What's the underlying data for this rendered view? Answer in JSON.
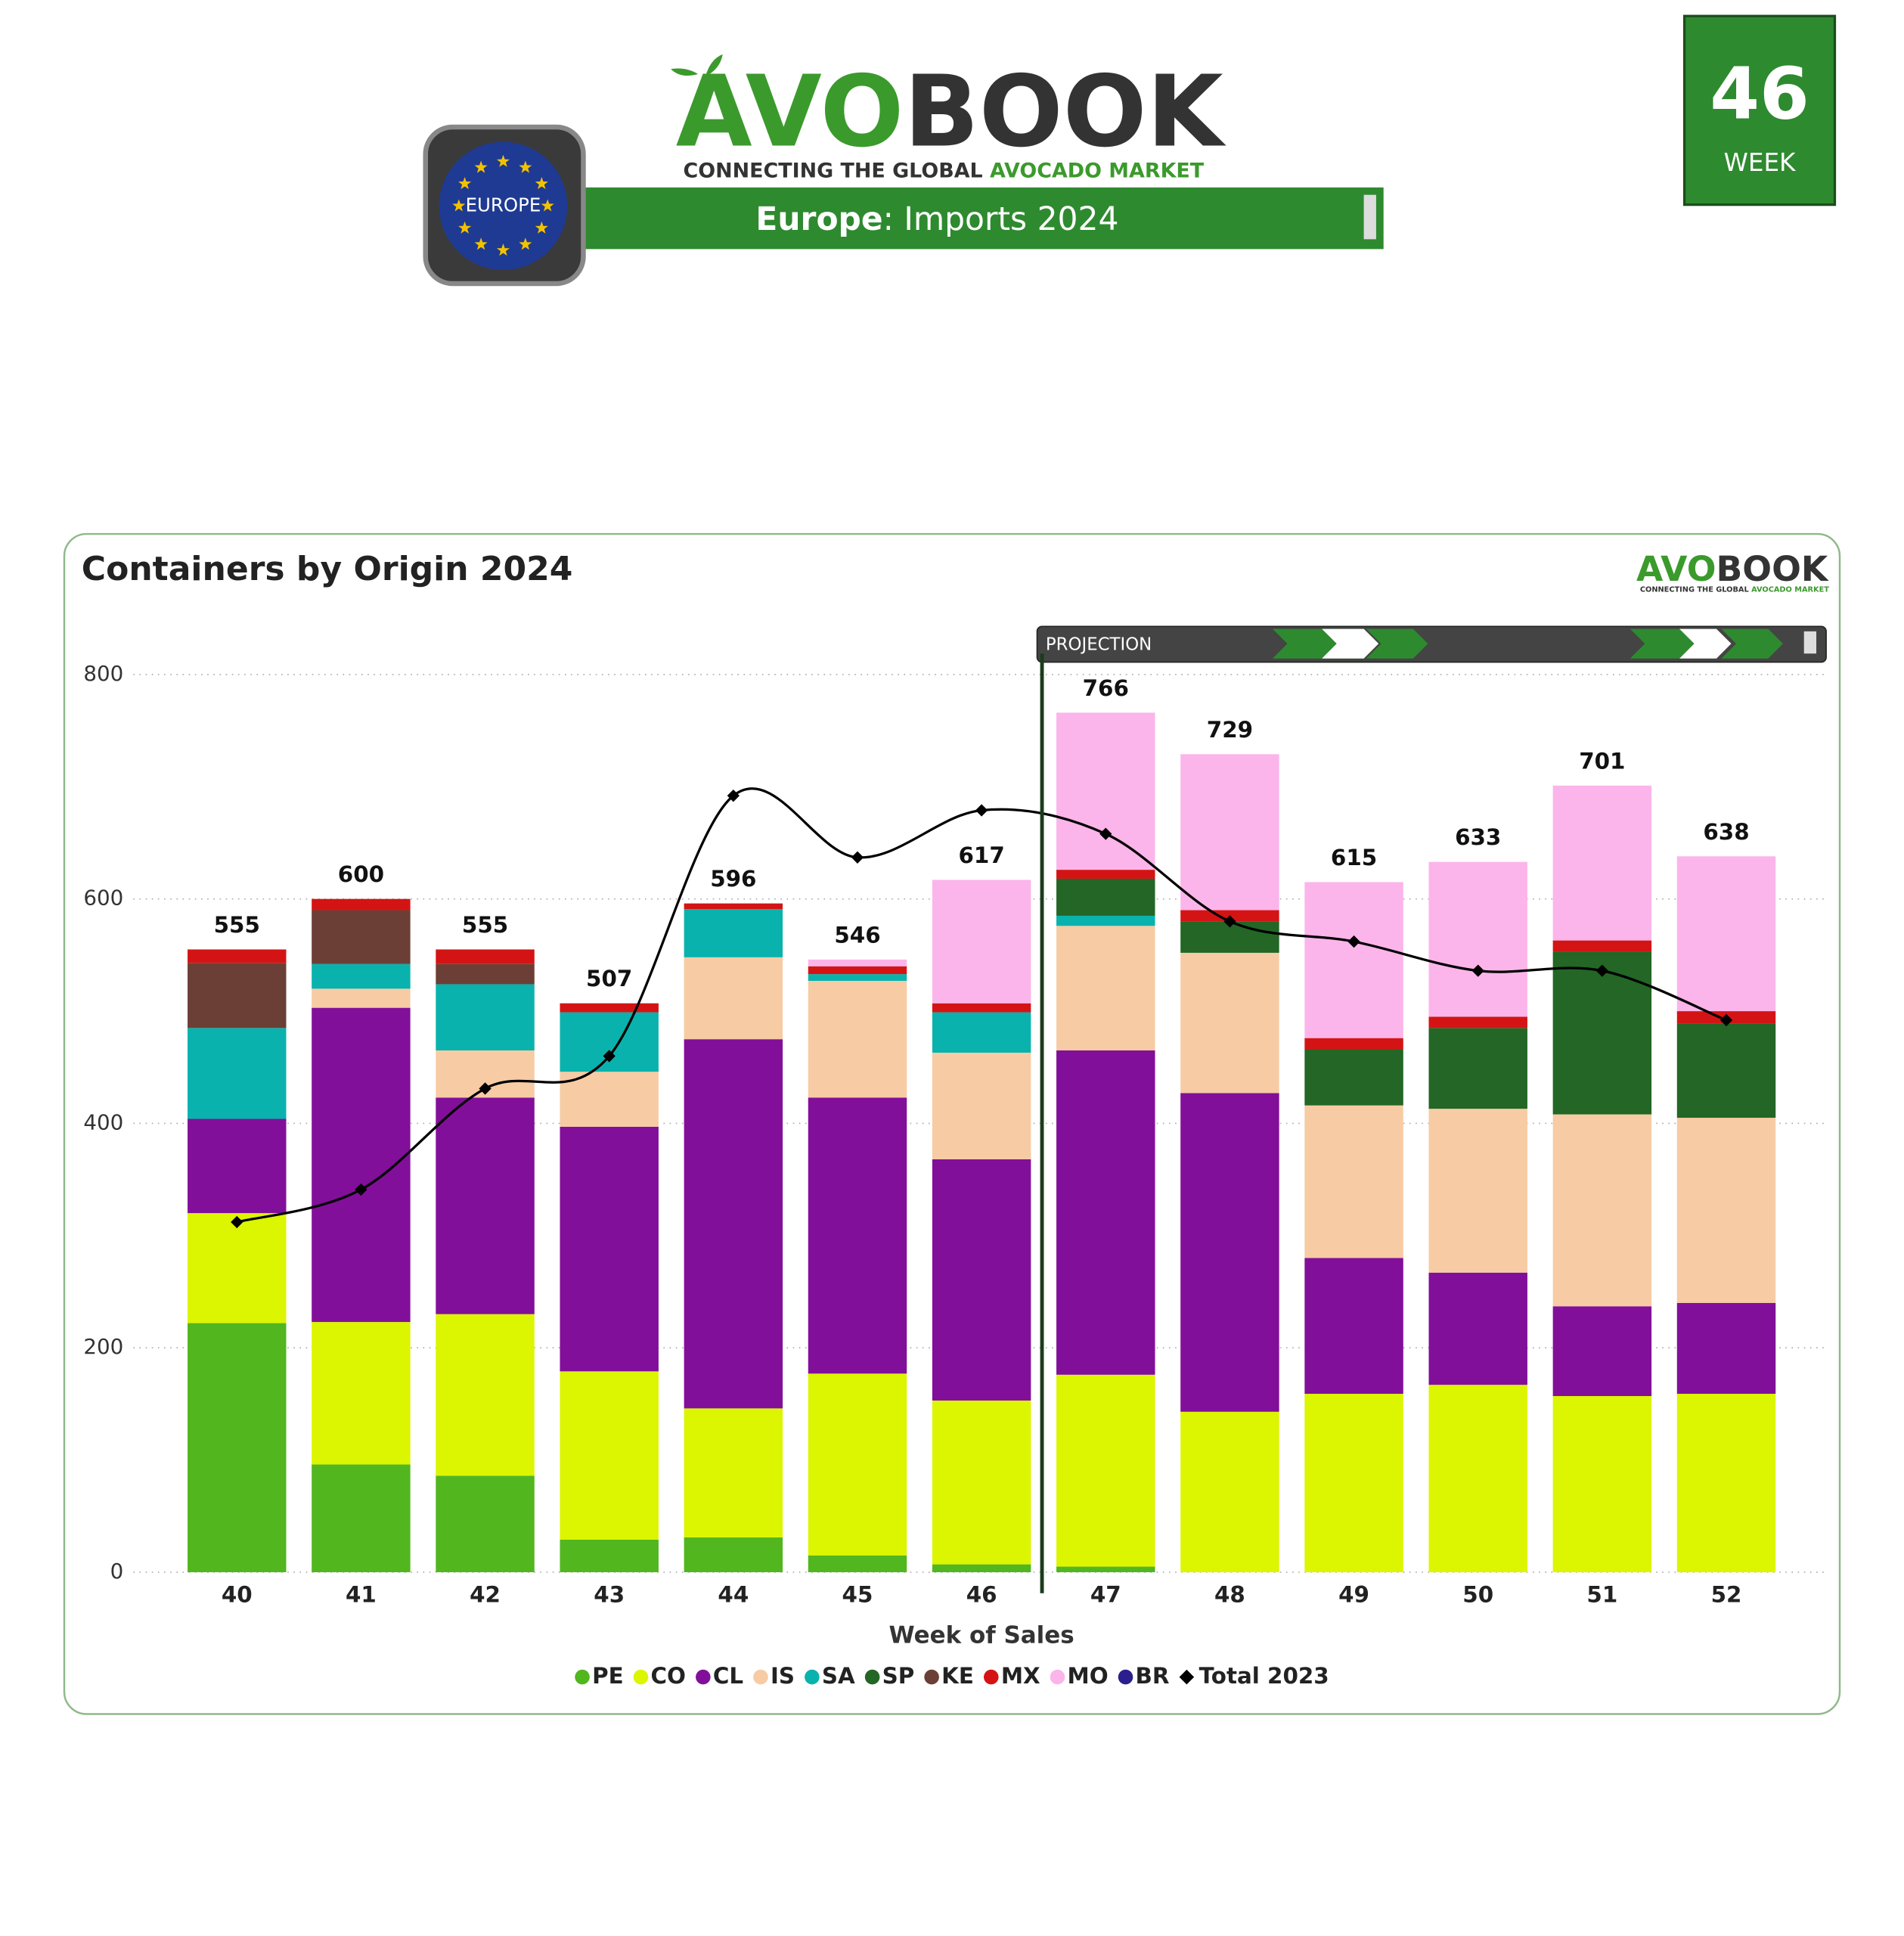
{
  "header": {
    "logo_a": "AVO",
    "logo_b": "BOOK",
    "tagline_a": "CONNECTING THE GLOBAL ",
    "tagline_b": "AVOCADO MARKET",
    "badge": "EUROPE",
    "region": "Europe",
    "subtitle_rest": ": Imports 2024",
    "week_number": "46",
    "week_label": "WEEK"
  },
  "chart_data": {
    "type": "stacked-bar",
    "title": "Containers by Origin 2024",
    "x_label": "Week of Sales",
    "projection_label": "PROJECTION",
    "categories": [
      "40",
      "41",
      "42",
      "43",
      "44",
      "45",
      "46",
      "47",
      "48",
      "49",
      "50",
      "51",
      "52"
    ],
    "series": [
      {
        "name": "PE",
        "color": "#52b61f",
        "values": [
          222,
          96,
          86,
          29,
          31,
          15,
          7,
          5,
          0,
          0,
          0,
          0,
          0
        ]
      },
      {
        "name": "CO",
        "color": "#dcf500",
        "values": [
          98,
          127,
          144,
          150,
          115,
          162,
          146,
          171,
          143,
          159,
          167,
          157,
          159
        ]
      },
      {
        "name": "CL",
        "color": "#820f9a",
        "values": [
          84,
          280,
          193,
          218,
          329,
          246,
          215,
          289,
          284,
          121,
          100,
          80,
          81
        ]
      },
      {
        "name": "IS",
        "color": "#f7cba4",
        "values": [
          0,
          17,
          42,
          49,
          73,
          104,
          95,
          111,
          125,
          136,
          146,
          171,
          165
        ]
      },
      {
        "name": "SA",
        "color": "#0ab2ad",
        "values": [
          81,
          22,
          59,
          53,
          43,
          6,
          36,
          9,
          0,
          0,
          0,
          0,
          0
        ]
      },
      {
        "name": "SP",
        "color": "#236625",
        "values": [
          0,
          0,
          0,
          0,
          0,
          0,
          0,
          33,
          28,
          50,
          72,
          145,
          84
        ]
      },
      {
        "name": "KE",
        "color": "#6b3f36",
        "values": [
          58,
          48,
          18,
          0,
          0,
          0,
          0,
          0,
          0,
          0,
          0,
          0,
          0
        ]
      },
      {
        "name": "MX",
        "color": "#d41414",
        "values": [
          12,
          10,
          13,
          8,
          5,
          7,
          8,
          8,
          10,
          10,
          10,
          10,
          11
        ]
      },
      {
        "name": "MO",
        "color": "#fbb5ea",
        "values": [
          0,
          0,
          0,
          0,
          0,
          6,
          110,
          140,
          139,
          139,
          138,
          138,
          138
        ]
      },
      {
        "name": "BR",
        "color": "#2a1f8c",
        "values": [
          0,
          0,
          0,
          0,
          0,
          0,
          0,
          0,
          0,
          0,
          0,
          0,
          0
        ]
      }
    ],
    "line": {
      "name": "Total 2023",
      "color": "#000000",
      "values": [
        312,
        341,
        431,
        460,
        692,
        637,
        679,
        658,
        580,
        562,
        536,
        536,
        492
      ]
    },
    "totals": [
      555,
      600,
      555,
      507,
      596,
      546,
      617,
      766,
      729,
      615,
      633,
      701,
      638
    ],
    "ylim": [
      0,
      800
    ],
    "yticks": [
      0,
      200,
      400,
      600,
      800
    ],
    "grid": true
  }
}
